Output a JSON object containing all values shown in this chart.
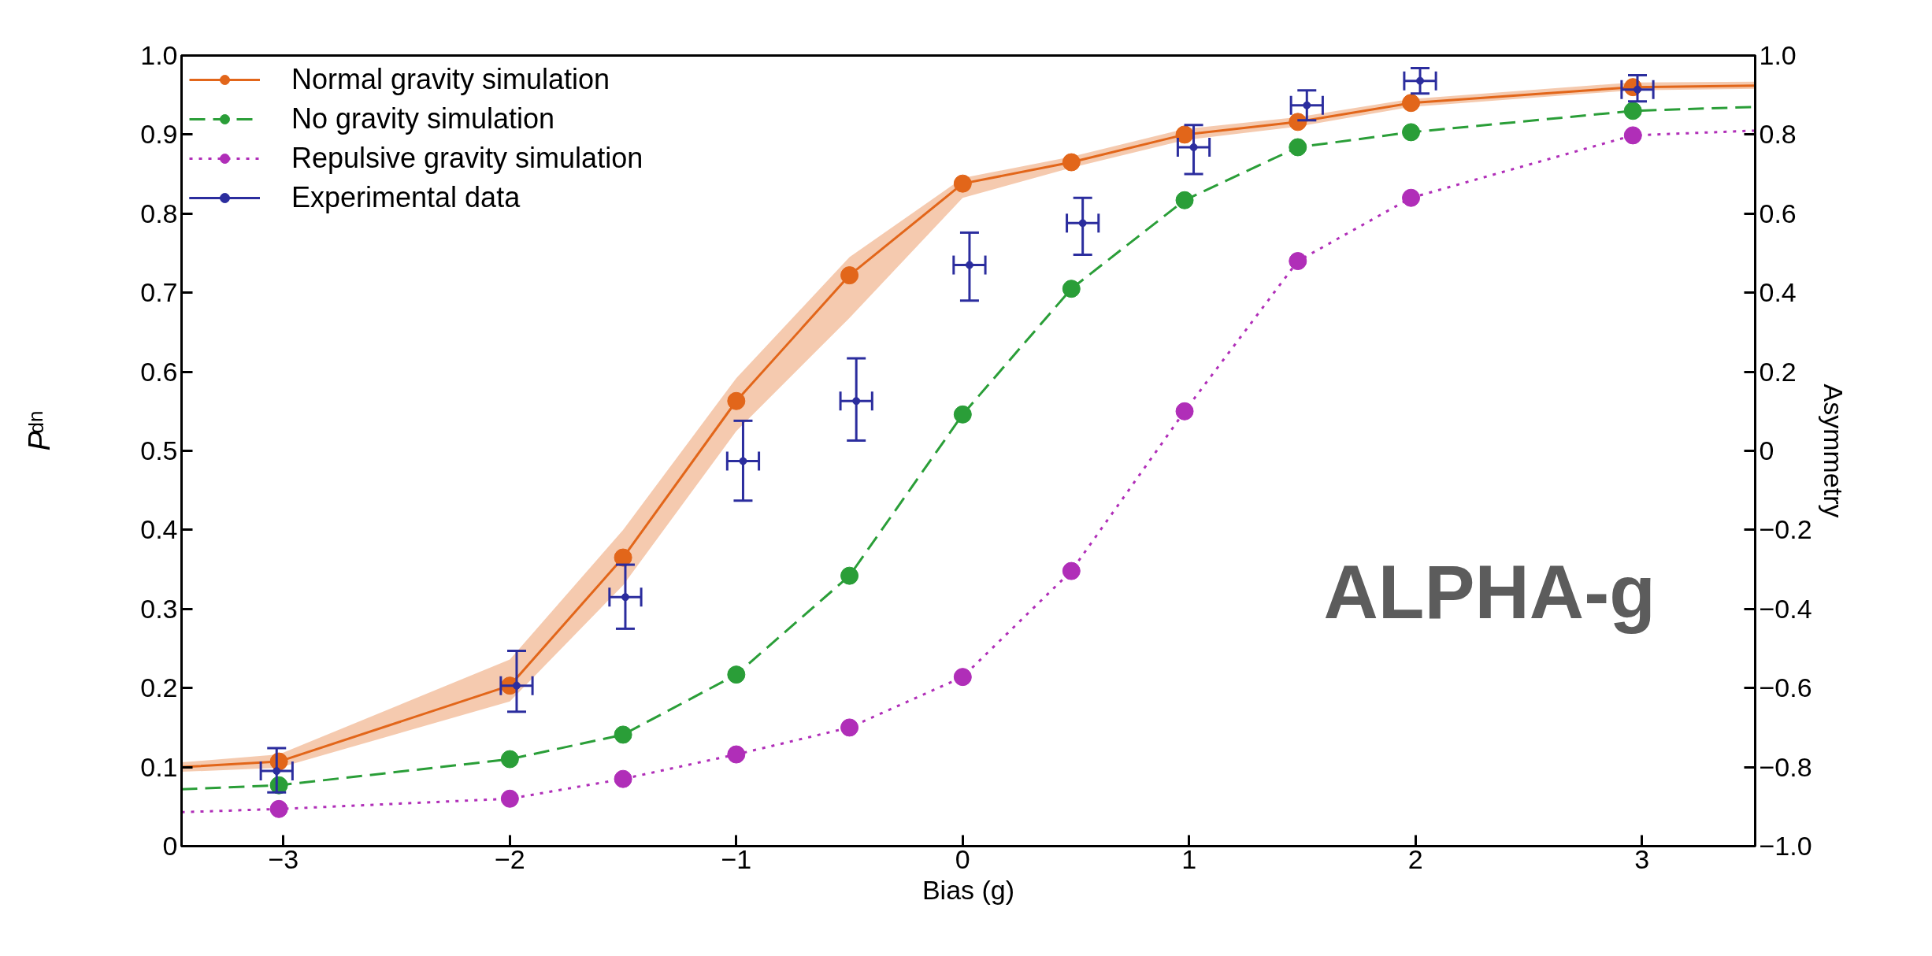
{
  "chart_data": {
    "type": "line",
    "xlabel": "Bias (g)",
    "ylabel": "P$_{dn}$",
    "y2label": "Asymmetry",
    "xlim": [
      -3.45,
      3.5
    ],
    "ylim": [
      0,
      1.0
    ],
    "y2lim": [
      -1.0,
      1.0
    ],
    "xticks": [
      {
        "value": -3,
        "label": "−3"
      },
      {
        "value": -2,
        "label": "−2"
      },
      {
        "value": -1,
        "label": "−1"
      },
      0,
      1,
      2,
      3
    ],
    "yticks": [
      0,
      0.1,
      0.2,
      0.3,
      0.4,
      0.5,
      0.6,
      0.7,
      0.8,
      0.9,
      {
        "value": 1.0,
        "label": "1.0"
      }
    ],
    "y2ticks": [
      {
        "value": -1.0,
        "label": "−1.0"
      },
      {
        "value": -0.8,
        "label": "−0.8"
      },
      {
        "value": -0.6,
        "label": "−0.6"
      },
      {
        "value": -0.4,
        "label": "−0.4"
      },
      {
        "value": -0.2,
        "label": "−0.2"
      },
      0,
      0.2,
      0.4,
      0.6,
      0.8,
      {
        "value": 1.0,
        "label": "1.0"
      }
    ],
    "grid": false,
    "legend": "top left",
    "marker": "circle",
    "annotations": [
      "ALPHA-g"
    ],
    "series": [
      {
        "name": "Normal gravity simulation",
        "line_style": "solid",
        "color": "#e2661a",
        "x": [
          -3.45,
          -3.02,
          -2.0,
          -1.5,
          -1.0,
          -0.5,
          0.0,
          0.48,
          0.98,
          1.48,
          1.98,
          2.96,
          3.5
        ],
        "values": [
          0.1,
          0.107,
          0.203,
          0.365,
          0.563,
          0.722,
          0.838,
          0.865,
          0.9,
          0.916,
          0.94,
          0.96,
          0.962
        ],
        "lower": [
          0.094,
          0.099,
          0.183,
          0.33,
          0.525,
          0.668,
          0.82,
          0.858,
          0.893,
          0.91,
          0.935,
          0.956,
          0.958
        ],
        "upper": [
          0.106,
          0.116,
          0.236,
          0.4,
          0.592,
          0.745,
          0.845,
          0.872,
          0.907,
          0.922,
          0.945,
          0.966,
          0.967
        ]
      },
      {
        "name": "No gravity simulation",
        "line_style": "dashed",
        "color": "#2a9e38",
        "x": [
          -3.45,
          -3.02,
          -2.0,
          -1.5,
          -1.0,
          -0.5,
          0.0,
          0.48,
          0.98,
          1.48,
          1.98,
          2.96,
          3.5
        ],
        "values": [
          0.072,
          0.077,
          0.11,
          0.141,
          0.217,
          0.342,
          0.546,
          0.705,
          0.817,
          0.884,
          0.903,
          0.93,
          0.935
        ]
      },
      {
        "name": "Repulsive gravity simulation",
        "line_style": "dotted",
        "color": "#b02eb8",
        "x": [
          -3.45,
          -3.02,
          -2.0,
          -1.5,
          -1.0,
          -0.5,
          0.0,
          0.48,
          0.98,
          1.48,
          1.98,
          2.96,
          3.5
        ],
        "values": [
          0.043,
          0.047,
          0.06,
          0.085,
          0.116,
          0.15,
          0.214,
          0.348,
          0.55,
          0.74,
          0.82,
          0.899,
          0.905
        ]
      },
      {
        "name": "Experimental data",
        "type": "scatter",
        "color": "#2b2d9e",
        "x": [
          -3.03,
          -1.97,
          -1.49,
          -0.97,
          -0.47,
          0.03,
          0.53,
          1.02,
          1.52,
          2.02,
          2.98
        ],
        "values": [
          0.095,
          0.203,
          0.315,
          0.487,
          0.563,
          0.735,
          0.788,
          0.884,
          0.937,
          0.968,
          0.957
        ],
        "errors": [
          [
            0.068,
            0.124
          ],
          [
            0.17,
            0.247
          ],
          [
            0.275,
            0.356
          ],
          [
            0.437,
            0.538
          ],
          [
            0.513,
            0.617
          ],
          [
            0.69,
            0.776
          ],
          [
            0.748,
            0.82
          ],
          [
            0.85,
            0.912
          ],
          [
            0.918,
            0.956
          ],
          [
            0.952,
            0.984
          ],
          [
            0.942,
            0.975
          ]
        ],
        "xerrors": [
          0.07,
          0.07,
          0.07,
          0.07,
          0.07,
          0.07,
          0.07,
          0.07,
          0.07,
          0.07,
          0.07
        ]
      }
    ]
  }
}
